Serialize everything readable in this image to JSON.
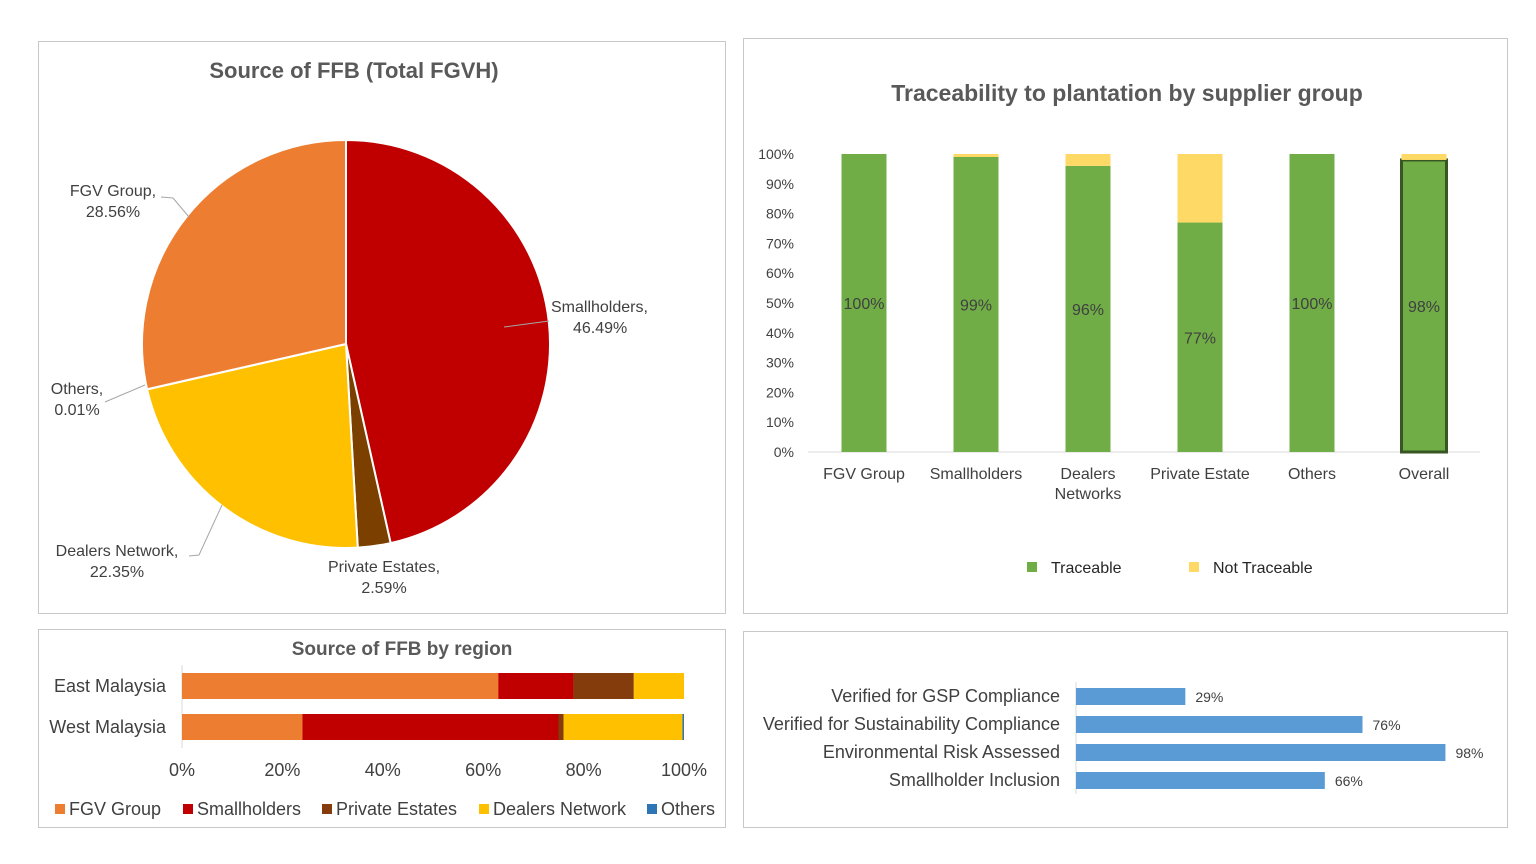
{
  "charts": {
    "pie": {
      "title": "Source of FFB (Total FGVH)",
      "slices": [
        {
          "name": "Smallholders",
          "value": 46.49,
          "label": "46.49%",
          "color": "#C00000"
        },
        {
          "name": "Private Estates",
          "value": 2.59,
          "label": "2.59%",
          "color": "#7B3F00"
        },
        {
          "name": "Dealers Network",
          "value": 22.35,
          "label": "22.35%",
          "color": "#FFC000"
        },
        {
          "name": "Others",
          "value": 0.01,
          "label": "0.01%",
          "color": "#2E75B6"
        },
        {
          "name": "FGV Group",
          "value": 28.56,
          "label": "28.56%",
          "color": "#ED7D31"
        }
      ]
    },
    "traceability": {
      "title": "Traceability to plantation by supplier group",
      "categories": [
        [
          "FGV Group"
        ],
        [
          "Smallholders"
        ],
        [
          "Dealers",
          "Networks"
        ],
        [
          "Private Estate"
        ],
        [
          "Others"
        ],
        [
          "Overall"
        ]
      ],
      "yticks": [
        "0%",
        "10%",
        "20%",
        "30%",
        "40%",
        "50%",
        "60%",
        "70%",
        "80%",
        "90%",
        "100%"
      ],
      "series": [
        {
          "name": "Traceable",
          "color": "#70AD47",
          "values": [
            100,
            99,
            96,
            77,
            100,
            98
          ],
          "labels": [
            "100%",
            "99%",
            "96%",
            "77%",
            "100%",
            "98%"
          ]
        },
        {
          "name": "Not Traceable",
          "color": "#FFD966",
          "values": [
            0,
            1,
            4,
            23,
            0,
            2
          ]
        }
      ]
    },
    "region": {
      "title": "Source of FFB by region",
      "categories": [
        "East Malaysia",
        "West Malaysia"
      ],
      "xticks": [
        "0%",
        "20%",
        "40%",
        "60%",
        "80%",
        "100%"
      ],
      "series": [
        {
          "name": "FGV Group",
          "color": "#ED7D31",
          "values": [
            63,
            24
          ]
        },
        {
          "name": "Smallholders",
          "color": "#C00000",
          "values": [
            15,
            51
          ]
        },
        {
          "name": "Private Estates",
          "color": "#843C0C",
          "values": [
            12,
            1
          ]
        },
        {
          "name": "Dealers Network",
          "color": "#FFC000",
          "values": [
            10,
            23.7
          ]
        },
        {
          "name": "Others",
          "color": "#2E75B6",
          "values": [
            0,
            0.3
          ]
        }
      ]
    },
    "compliance": {
      "color": "#5B9BD5",
      "items": [
        {
          "label": "Verified for GSP Compliance",
          "value": 29,
          "text": "29%"
        },
        {
          "label": "Verified for Sustainability Compliance",
          "value": 76,
          "text": "76%"
        },
        {
          "label": "Environmental Risk Assessed",
          "value": 98,
          "text": "98%"
        },
        {
          "label": "Smallholder Inclusion",
          "value": 66,
          "text": "66%"
        }
      ]
    }
  },
  "chart_data": [
    {
      "type": "pie",
      "title": "Source of FFB (Total FGVH)",
      "categories": [
        "Smallholders",
        "Private Estates",
        "Dealers Network",
        "Others",
        "FGV Group"
      ],
      "values": [
        46.49,
        2.59,
        22.35,
        0.01,
        28.56
      ]
    },
    {
      "type": "bar",
      "title": "Traceability to plantation by supplier group",
      "categories": [
        "FGV Group",
        "Smallholders",
        "Dealers Networks",
        "Private Estate",
        "Others",
        "Overall"
      ],
      "series": [
        {
          "name": "Traceable",
          "values": [
            100,
            99,
            96,
            77,
            100,
            98
          ]
        },
        {
          "name": "Not Traceable",
          "values": [
            0,
            1,
            4,
            23,
            0,
            2
          ]
        }
      ],
      "ylim": [
        0,
        100
      ],
      "stacked": true,
      "legend": "bottom"
    },
    {
      "type": "bar",
      "title": "Source of FFB by region",
      "orientation": "horizontal",
      "categories": [
        "East Malaysia",
        "West Malaysia"
      ],
      "series": [
        {
          "name": "FGV Group",
          "values": [
            63,
            24
          ]
        },
        {
          "name": "Smallholders",
          "values": [
            15,
            51
          ]
        },
        {
          "name": "Private Estates",
          "values": [
            12,
            1
          ]
        },
        {
          "name": "Dealers Network",
          "values": [
            10,
            23.7
          ]
        },
        {
          "name": "Others",
          "values": [
            0,
            0.3
          ]
        }
      ],
      "xlim": [
        0,
        100
      ],
      "stacked": true,
      "legend": "bottom"
    },
    {
      "type": "bar",
      "orientation": "horizontal",
      "categories": [
        "Verified for GSP Compliance",
        "Verified for Sustainability Compliance",
        "Environmental Risk Assessed",
        "Smallholder Inclusion"
      ],
      "values": [
        29,
        76,
        98,
        66
      ]
    }
  ]
}
